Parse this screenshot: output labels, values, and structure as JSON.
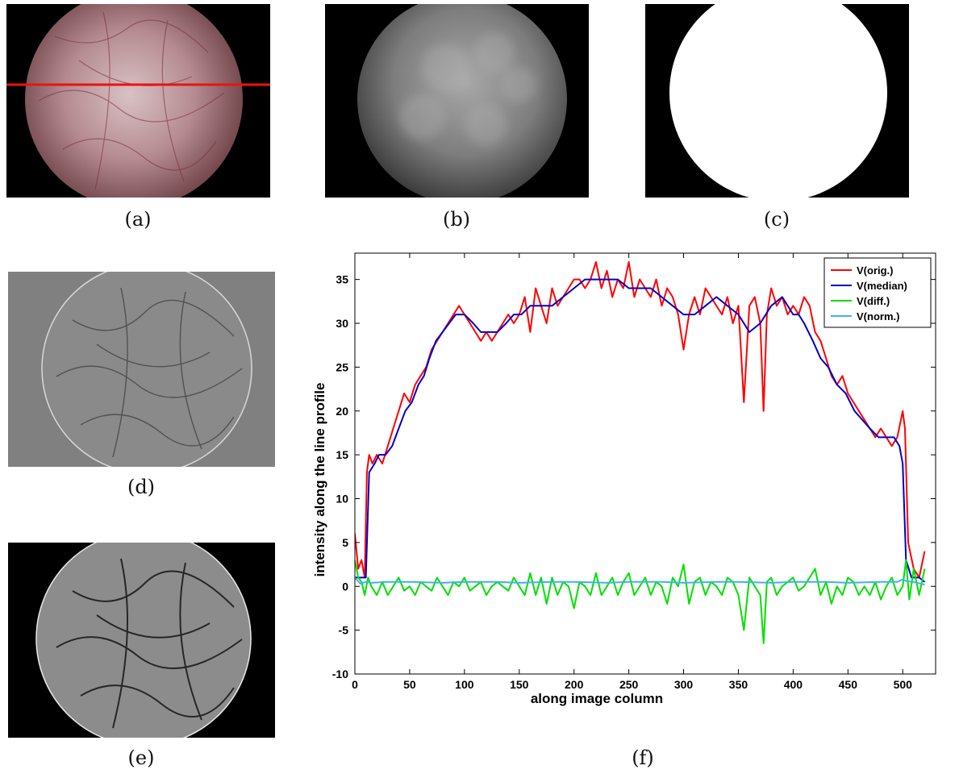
{
  "captions": {
    "a": "(a)",
    "b": "(b)",
    "c": "(c)",
    "d": "(d)",
    "e": "(e)",
    "f": "(f)"
  },
  "colors": {
    "orig": "#ff0000",
    "median": "#0000cc",
    "diff": "#00e000",
    "norm": "#40b0f0",
    "tissue": "#b28a8f",
    "line_profile": "#ee1111"
  },
  "chart_data": {
    "type": "line",
    "xlabel": "along image column",
    "ylabel": "intensity along the line profile",
    "xlim": [
      0,
      530
    ],
    "ylim": [
      -10,
      38
    ],
    "xticks": [
      0,
      50,
      100,
      150,
      200,
      250,
      300,
      350,
      400,
      450,
      500
    ],
    "yticks": [
      -10,
      -5,
      0,
      5,
      10,
      15,
      20,
      25,
      30,
      35
    ],
    "legend_position": "top-right",
    "series": [
      {
        "name": "V(orig.)",
        "color": "#ff0000",
        "x": [
          0,
          3,
          6,
          9,
          11,
          13,
          16,
          20,
          25,
          30,
          35,
          40,
          45,
          50,
          55,
          60,
          65,
          70,
          75,
          80,
          85,
          90,
          95,
          100,
          105,
          110,
          115,
          120,
          125,
          130,
          135,
          140,
          145,
          150,
          155,
          160,
          165,
          170,
          175,
          180,
          185,
          190,
          195,
          200,
          205,
          210,
          215,
          220,
          225,
          230,
          235,
          240,
          245,
          250,
          255,
          260,
          265,
          270,
          275,
          280,
          285,
          290,
          295,
          300,
          305,
          310,
          315,
          320,
          325,
          330,
          335,
          340,
          345,
          350,
          355,
          360,
          365,
          370,
          373,
          376,
          380,
          385,
          390,
          395,
          400,
          405,
          410,
          415,
          420,
          425,
          430,
          435,
          440,
          445,
          450,
          455,
          460,
          465,
          470,
          475,
          480,
          485,
          490,
          495,
          500,
          502,
          505,
          510,
          515,
          520
        ],
        "y": [
          6,
          2,
          3,
          1,
          13,
          15,
          14,
          15,
          14,
          16,
          18,
          20,
          22,
          21,
          23,
          24,
          25,
          27,
          28,
          29,
          30,
          31,
          32,
          31,
          30,
          29,
          28,
          29,
          28,
          29,
          30,
          31,
          30,
          31,
          33,
          29,
          34,
          32,
          30,
          34,
          32,
          33,
          34,
          35,
          35,
          34,
          35,
          37,
          34,
          36,
          33,
          35,
          34,
          37,
          33,
          35,
          34,
          33,
          35,
          32,
          34,
          33,
          31,
          27,
          31,
          33,
          31,
          34,
          33,
          32,
          31,
          33,
          30,
          32,
          21,
          32,
          33,
          30,
          20,
          31,
          34,
          32,
          33,
          31,
          32,
          31,
          33,
          32,
          29,
          28,
          26,
          24,
          23,
          24,
          22,
          21,
          20,
          19,
          18,
          17,
          18,
          17,
          16,
          17,
          20,
          18,
          5,
          2,
          1,
          4
        ]
      },
      {
        "name": "V(median)",
        "color": "#0000cc",
        "x": [
          0,
          5,
          10,
          13,
          18,
          22,
          28,
          34,
          40,
          46,
          52,
          58,
          63,
          68,
          74,
          80,
          86,
          92,
          100,
          108,
          115,
          122,
          130,
          138,
          145,
          152,
          160,
          170,
          180,
          190,
          200,
          210,
          220,
          230,
          240,
          250,
          260,
          270,
          280,
          290,
          300,
          310,
          320,
          330,
          340,
          350,
          360,
          370,
          380,
          390,
          395,
          400,
          405,
          410,
          418,
          425,
          432,
          440,
          448,
          456,
          463,
          470,
          478,
          485,
          492,
          497,
          500,
          503,
          508,
          515,
          520
        ],
        "y": [
          1,
          1,
          1,
          13,
          14,
          15,
          15,
          16,
          18,
          20,
          21,
          23,
          24,
          26,
          28,
          29,
          30,
          31,
          31,
          30,
          29,
          29,
          29,
          30,
          31,
          31,
          32,
          32,
          32,
          33,
          34,
          35,
          35,
          35,
          35,
          34,
          34,
          34,
          33,
          32,
          31,
          31,
          32,
          33,
          32,
          31,
          29,
          30,
          32,
          33,
          32,
          31,
          31,
          30,
          28,
          26,
          25,
          23,
          22,
          20,
          19,
          18,
          17,
          17,
          17,
          16,
          14,
          3,
          1,
          1,
          0.5
        ]
      },
      {
        "name": "V(diff.)",
        "color": "#00e000",
        "x": [
          0,
          3,
          6,
          9,
          12,
          15,
          20,
          25,
          30,
          35,
          40,
          45,
          50,
          55,
          60,
          65,
          70,
          75,
          80,
          85,
          90,
          95,
          100,
          105,
          110,
          115,
          120,
          125,
          130,
          135,
          140,
          145,
          150,
          155,
          160,
          165,
          170,
          175,
          180,
          185,
          190,
          195,
          200,
          205,
          210,
          215,
          220,
          225,
          230,
          235,
          240,
          245,
          250,
          255,
          260,
          265,
          270,
          275,
          280,
          285,
          290,
          295,
          300,
          305,
          310,
          315,
          320,
          325,
          330,
          335,
          340,
          345,
          350,
          355,
          360,
          365,
          370,
          373,
          376,
          380,
          385,
          390,
          395,
          400,
          405,
          410,
          415,
          420,
          425,
          430,
          435,
          440,
          445,
          450,
          455,
          460,
          465,
          470,
          475,
          480,
          485,
          490,
          495,
          500,
          503,
          506,
          510,
          515,
          520
        ],
        "y": [
          3,
          1,
          0.5,
          -1,
          1,
          0,
          -1,
          0.5,
          -1,
          0,
          1,
          -0.5,
          0,
          -1,
          0.5,
          0,
          -0.5,
          1,
          0,
          -1,
          0.5,
          0,
          1,
          -0.5,
          0,
          0.5,
          -1,
          0,
          0.5,
          0,
          -0.5,
          1,
          0,
          -1,
          1.5,
          -1,
          1,
          -2,
          1,
          -1,
          0.5,
          0,
          -2.5,
          0.5,
          0,
          -1,
          1.5,
          -1,
          0,
          1,
          -1,
          0.5,
          1.5,
          -1,
          0,
          1,
          -1,
          0.5,
          0,
          -2,
          1,
          0,
          2.5,
          -2,
          0.5,
          1,
          -1,
          0.5,
          0,
          -1,
          1,
          0.5,
          -1,
          -5,
          1,
          0,
          -1,
          -6.5,
          0.5,
          1,
          -1,
          0,
          0.5,
          1,
          -0.5,
          0,
          1,
          2,
          -1,
          0.5,
          -2,
          0,
          -1,
          1,
          0.5,
          -1,
          0,
          -1,
          0.5,
          -1.5,
          0,
          1,
          -1,
          0,
          3,
          -1.5,
          2,
          -1,
          2
        ]
      },
      {
        "name": "V(norm.)",
        "color": "#40b0f0",
        "x": [
          0,
          5,
          10,
          15,
          30,
          50,
          80,
          100,
          130,
          150,
          180,
          200,
          230,
          250,
          280,
          300,
          330,
          350,
          380,
          400,
          430,
          450,
          480,
          495,
          500,
          503,
          510,
          520
        ],
        "y": [
          1,
          0.3,
          0.5,
          0.4,
          0.5,
          0.5,
          0.4,
          0.5,
          0.5,
          0.4,
          0.5,
          0.5,
          0.4,
          0.5,
          0.5,
          0.4,
          0.5,
          0.5,
          0.4,
          0.5,
          0.5,
          0.4,
          0.5,
          0.5,
          0.8,
          0.6,
          0.5,
          0.2
        ]
      }
    ]
  }
}
